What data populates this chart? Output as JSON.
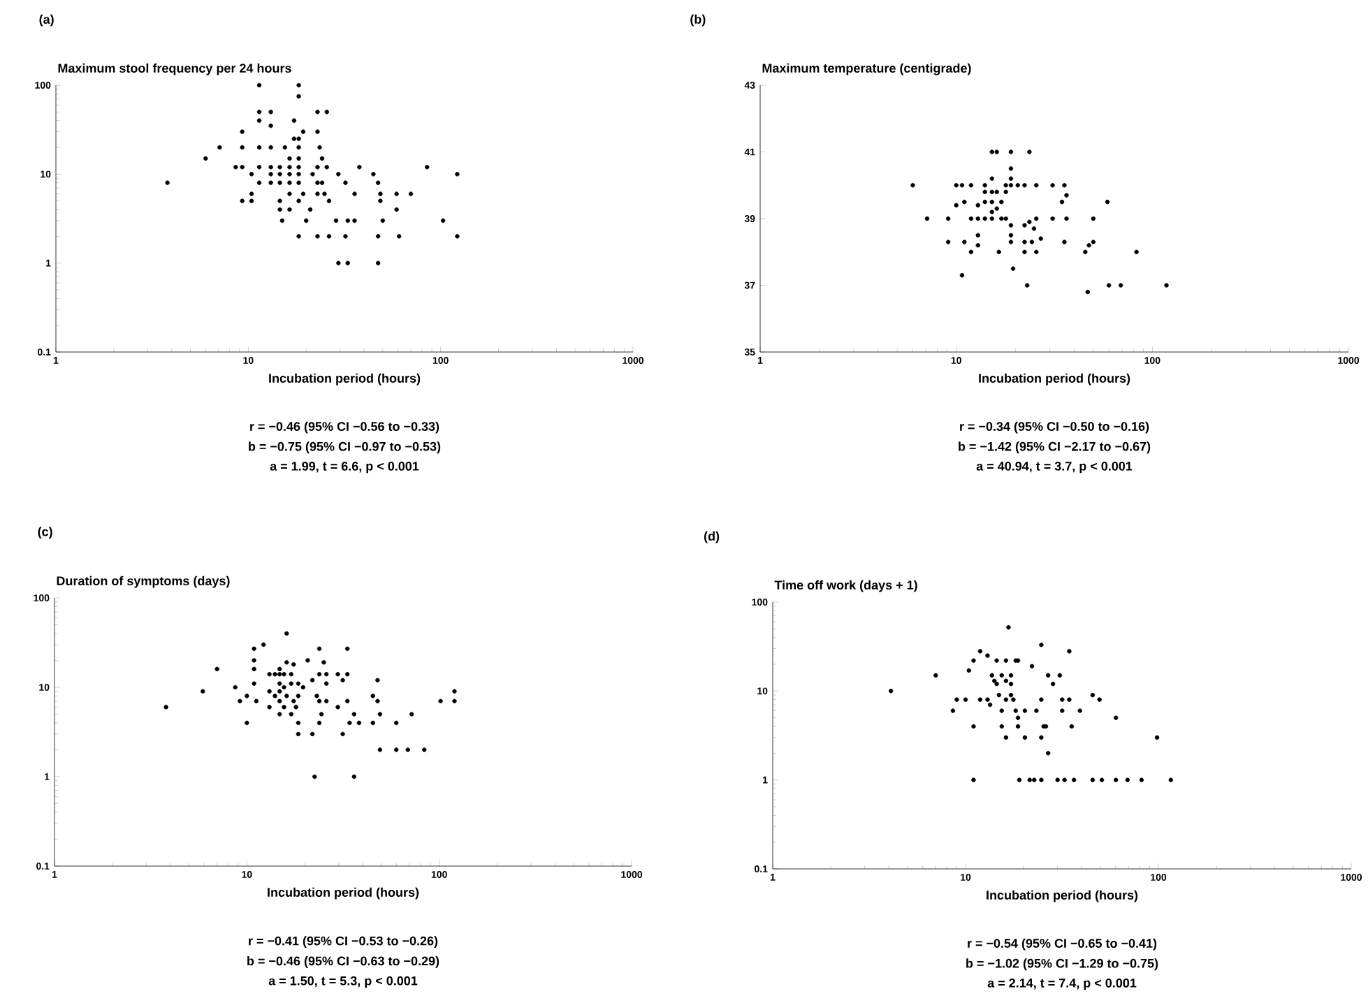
{
  "chart_data": [
    {
      "type": "scatter",
      "title": "Maximum stool frequency per 24 hours",
      "xlabel": "Incubation period (hours)",
      "annotations": [
        "(a)",
        "r = −0.46 (95% CI −0.56 to −0.33)",
        "b = −0.75 (95% CI −0.97 to −0.53)",
        "a = 1.99, t = 6.6, p < 0.001"
      ],
      "log": "xy",
      "marker": "circle",
      "color": "#000000",
      "xlim": [
        1,
        1000
      ],
      "ylim": [
        0.1,
        100
      ],
      "xticks": [
        1,
        10,
        100,
        1000
      ],
      "yticks": [
        0.1,
        1,
        10,
        100
      ],
      "x": [
        3.8,
        6.0,
        7.1,
        9.3,
        9.3,
        8.6,
        9.3,
        10.4,
        9.3,
        10.4,
        11.4,
        10.4,
        11.4,
        11.4,
        11.4,
        11.4,
        11.4,
        13.1,
        13.1,
        13.1,
        13.1,
        13.1,
        13.1,
        14.6,
        14.6,
        14.6,
        14.6,
        14.6,
        15,
        15.5,
        16.4,
        16.4,
        16.4,
        16.4,
        16.4,
        16.4,
        17.3,
        17.3,
        18.3,
        18.3,
        18.3,
        18.3,
        18.3,
        18.3,
        18.3,
        18.3,
        18.3,
        18.3,
        19.3,
        19.3,
        20,
        21,
        21.6,
        22.9,
        22.9,
        22.9,
        22.9,
        22.9,
        23.5,
        24.2,
        25.6,
        25.6,
        24.2,
        24.9,
        26.3,
        26.3,
        22.9,
        28.6,
        29.4,
        32,
        32,
        29.4,
        32.9,
        32.9,
        35.7,
        37.8,
        35.7,
        44.7,
        47.3,
        48.6,
        48.6,
        50,
        47.3,
        47.3,
        59,
        59,
        60.8,
        70,
        85,
        103,
        122,
        122
      ],
      "values": [
        8,
        15,
        20,
        20,
        30,
        12,
        12,
        6,
        5,
        5,
        8,
        10,
        12,
        20,
        40,
        50,
        100,
        50,
        35,
        20,
        12,
        10,
        8,
        12,
        10,
        8,
        5,
        4,
        3,
        20,
        15,
        12,
        10,
        8,
        6,
        4,
        40,
        25,
        20,
        15,
        12,
        10,
        8,
        100,
        75,
        2,
        5,
        25,
        30,
        6,
        3,
        4,
        10,
        50,
        30,
        12,
        8,
        6,
        20,
        15,
        12,
        50,
        8,
        6,
        5,
        2,
        2,
        3,
        10,
        8,
        2,
        1,
        1,
        3,
        6,
        12,
        3,
        10,
        8,
        6,
        5,
        3,
        2,
        1,
        6,
        4,
        2,
        6,
        12,
        3,
        10,
        2
      ]
    },
    {
      "type": "scatter",
      "title": "Maximum temperature (centigrade)",
      "xlabel": "Incubation period (hours)",
      "annotations": [
        "(b)",
        "r = −0.34 (95% CI −0.50 to −0.16)",
        "b = −1.42 (95% CI −2.17 to −0.67)",
        "a = 40.94, t = 3.7, p < 0.001"
      ],
      "log": "x",
      "marker": "circle",
      "color": "#000000",
      "xlim": [
        1,
        1000
      ],
      "ylim": [
        35,
        43
      ],
      "xticks": [
        1,
        10,
        100,
        1000
      ],
      "yticks": [
        35,
        37,
        39,
        41,
        43
      ],
      "x": [
        6.0,
        7.1,
        9.1,
        9.1,
        10,
        10,
        10.7,
        11,
        11,
        11.9,
        11.9,
        11.9,
        12.9,
        12.9,
        12.9,
        12.9,
        14,
        14,
        14,
        14,
        15.2,
        15.2,
        15.2,
        15.2,
        15.2,
        15.2,
        16.1,
        16.1,
        16.1,
        16.5,
        17,
        17,
        17.9,
        17.9,
        17.9,
        19,
        19,
        19,
        19,
        19,
        19,
        19,
        19.5,
        20.6,
        22.3,
        22.3,
        22.3,
        22.3,
        23,
        23.6,
        23.6,
        24.3,
        24.9,
        25.6,
        25.6,
        25.6,
        27,
        31,
        31,
        34.6,
        35.6,
        35.6,
        36.5,
        36.5,
        45.5,
        47.5,
        50,
        50,
        59,
        46.8,
        60,
        69,
        83,
        118,
        10.7
      ],
      "values": [
        40,
        39,
        39,
        38.3,
        39.4,
        40,
        40,
        38.3,
        39.5,
        40,
        39,
        38,
        38.5,
        38.2,
        39.4,
        39,
        40,
        39.8,
        39,
        39.5,
        41,
        40.2,
        39.8,
        39.5,
        39.2,
        39,
        41,
        39.8,
        39.3,
        38,
        39.5,
        39,
        40,
        39.8,
        39,
        41,
        40.5,
        40.2,
        40,
        38.8,
        38.5,
        38.3,
        37.5,
        40,
        40,
        38.8,
        38.3,
        38,
        37,
        41,
        38.9,
        38.3,
        38.7,
        40,
        39,
        38,
        38.4,
        40,
        39,
        39.5,
        40,
        38.3,
        39.7,
        39,
        38,
        38.2,
        38.3,
        39,
        39.5,
        36.8,
        37,
        37,
        38,
        37,
        37.3
      ]
    },
    {
      "type": "scatter",
      "title": "Duration of symptoms (days)",
      "xlabel": "Incubation period (hours)",
      "annotations": [
        "(c)",
        "r = −0.41 (95% CI −0.53 to −0.26)",
        "b = −0.46 (95% CI −0.63 to −0.29)",
        "a = 1.50, t = 5.3, p < 0.001"
      ],
      "log": "xy",
      "marker": "circle",
      "color": "#000000",
      "xlim": [
        1,
        1000
      ],
      "ylim": [
        0.1,
        100
      ],
      "xticks": [
        1,
        10,
        100,
        1000
      ],
      "yticks": [
        0.1,
        1,
        10,
        100
      ],
      "x": [
        3.8,
        5.9,
        7.0,
        8.7,
        9.2,
        10,
        10,
        10.9,
        10.9,
        10.9,
        10.9,
        11.2,
        12.2,
        13.1,
        13.1,
        13.1,
        14,
        14,
        14.8,
        14.8,
        14.8,
        14.8,
        14.8,
        14.8,
        15.6,
        15.6,
        15.6,
        16.1,
        16.1,
        16.1,
        17,
        17,
        17,
        17.5,
        17.5,
        18,
        18.5,
        18.5,
        18.5,
        18.5,
        19.6,
        20.7,
        21.9,
        21.9,
        23.1,
        23.8,
        23.8,
        23.8,
        23.8,
        24.4,
        25.1,
        25.9,
        25.9,
        25.9,
        29.7,
        29.7,
        31.5,
        31.5,
        33.3,
        33.3,
        33.3,
        34.2,
        36.1,
        38.3,
        45.2,
        47.8,
        47.8,
        49.2,
        49.2,
        45.2,
        59.8,
        59.8,
        68.7,
        71.9,
        83.6,
        101.6,
        120,
        120,
        22.5,
        36.1
      ],
      "values": [
        6,
        9,
        16,
        10,
        7,
        8,
        4,
        20,
        16,
        27,
        11,
        7,
        30,
        14,
        9,
        6,
        14,
        8,
        16,
        14,
        11,
        9,
        7,
        5,
        14,
        10,
        6,
        40,
        19,
        8,
        14,
        11,
        5,
        18,
        7,
        6,
        11,
        8,
        4,
        3,
        10,
        20,
        3,
        12,
        8,
        27,
        14,
        7,
        4,
        5,
        19,
        14,
        11,
        7,
        14,
        6,
        12,
        3,
        27,
        14,
        7,
        4,
        5,
        4,
        8,
        7,
        12,
        5,
        2,
        4,
        4,
        2,
        2,
        5,
        2,
        7,
        9,
        7,
        1,
        1
      ]
    },
    {
      "type": "scatter",
      "title": "Time off work (days + 1)",
      "xlabel": "Incubation period (hours)",
      "annotations": [
        "(d)",
        "r = −0.54 (95% CI −0.65 to −0.41)",
        "b = −1.02 (95% CI −1.29 to −0.75)",
        "a = 2.14, t = 7.4, p < 0.001"
      ],
      "log": "xy",
      "marker": "circle",
      "color": "#000000",
      "xlim": [
        1,
        1000
      ],
      "ylim": [
        0.1,
        100
      ],
      "xticks": [
        1,
        10,
        100,
        1000
      ],
      "yticks": [
        0.1,
        1,
        10,
        100
      ],
      "x": [
        4.1,
        7.0,
        8.6,
        9.0,
        10,
        10.4,
        11,
        11,
        11,
        11.9,
        11.9,
        13,
        13,
        13.4,
        13.7,
        14.1,
        14.5,
        14.5,
        14.9,
        15.4,
        15.4,
        15.4,
        16.2,
        16.2,
        16.2,
        16.2,
        16.7,
        17.2,
        17.2,
        17.2,
        17.7,
        18.2,
        18.2,
        18.7,
        18.7,
        18.7,
        19,
        20.3,
        20.3,
        21.5,
        22.1,
        22.7,
        23.3,
        24.7,
        24.7,
        24.7,
        25.4,
        26.1,
        24.7,
        26.8,
        26.8,
        28.4,
        30,
        30.8,
        31.7,
        31.7,
        32.6,
        34.5,
        34.5,
        35.5,
        36.5,
        39.2,
        45.6,
        45.6,
        49.5,
        50.9,
        60.2,
        60.2,
        69.2,
        81.8,
        98.4,
        116
      ],
      "values": [
        10,
        15,
        6,
        8,
        8,
        17,
        22,
        4,
        1,
        28,
        8,
        25,
        8,
        7,
        15,
        13,
        22,
        12,
        9,
        15,
        6,
        4,
        22,
        13,
        8,
        3,
        52,
        15,
        12,
        9,
        8,
        22,
        6,
        22,
        5,
        4,
        1,
        6,
        3,
        1,
        19,
        1,
        6,
        1,
        3,
        8,
        4,
        4,
        33,
        15,
        2,
        12,
        1,
        15,
        8,
        6,
        1,
        8,
        28,
        4,
        1,
        6,
        9,
        1,
        8,
        1,
        5,
        1,
        1,
        1,
        3,
        1
      ]
    }
  ]
}
